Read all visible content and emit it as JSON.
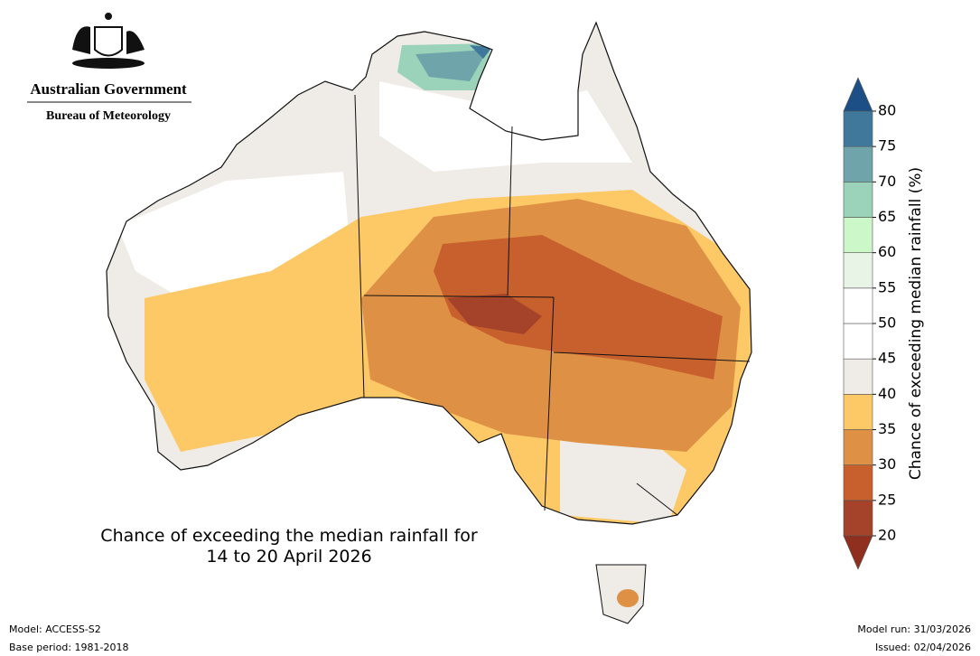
{
  "header": {
    "government": "Australian Government",
    "agency": "Bureau of Meteorology"
  },
  "map": {
    "title_line1": "Chance of exceeding the median rainfall for",
    "title_line2": "14 to 20 April 2026"
  },
  "colorbar": {
    "label": "Chance of exceeding median rainfall (%)",
    "ticks": [
      20,
      25,
      30,
      35,
      40,
      45,
      50,
      55,
      60,
      65,
      70,
      75,
      80
    ],
    "colors": [
      "#a4432a",
      "#c8602e",
      "#de9145",
      "#fdc866",
      "#efebe6",
      "#ffffff",
      "#ffffff",
      "#e8f5e6",
      "#cbf7c9",
      "#9bd3ba",
      "#6ea4aa",
      "#40789c"
    ],
    "under_color": "#8e2f1f",
    "over_color": "#1d4f87"
  },
  "footer": {
    "model": "Model: ACCESS-S2",
    "base_period": "Base period: 1981-2018",
    "model_run": "Model run: 31/03/2026",
    "issued": "Issued: 02/04/2026"
  }
}
